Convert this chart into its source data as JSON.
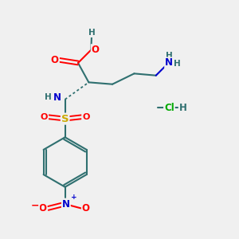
{
  "bg_color": "#f0f0f0",
  "atom_colors": {
    "O": "#ff0000",
    "N": "#0000cd",
    "S": "#ccaa00",
    "C": "#2f7070",
    "H": "#2f7070",
    "Cl": "#00aa00",
    "bond": "#2f7070"
  },
  "figsize": [
    3.0,
    3.0
  ],
  "dpi": 100
}
